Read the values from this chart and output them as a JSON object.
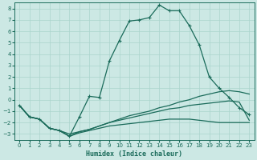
{
  "xlabel": "Humidex (Indice chaleur)",
  "xlim": [
    -0.5,
    23.5
  ],
  "ylim": [
    -3.5,
    8.5
  ],
  "xticks": [
    0,
    1,
    2,
    3,
    4,
    5,
    6,
    7,
    8,
    9,
    10,
    11,
    12,
    13,
    14,
    15,
    16,
    17,
    18,
    19,
    20,
    21,
    22,
    23
  ],
  "yticks": [
    -3,
    -2,
    -1,
    0,
    1,
    2,
    3,
    4,
    5,
    6,
    7,
    8
  ],
  "bg_color": "#cce8e4",
  "line_color": "#1a6b5a",
  "grid_color": "#aad4cc",
  "lines": [
    {
      "x": [
        0,
        1,
        2,
        3,
        4,
        5,
        6,
        7,
        8,
        9,
        10,
        11,
        12,
        13,
        14,
        15,
        16,
        17,
        18,
        19,
        20,
        21,
        22,
        23
      ],
      "y": [
        -0.5,
        -1.5,
        -1.7,
        -2.5,
        -2.7,
        -3.2,
        -1.5,
        0.3,
        0.2,
        3.4,
        5.2,
        6.9,
        7.0,
        7.2,
        8.3,
        7.8,
        7.8,
        6.5,
        4.8,
        2.0,
        1.0,
        0.2,
        -0.7,
        -1.3
      ],
      "marker": "+"
    },
    {
      "x": [
        0,
        1,
        2,
        3,
        4,
        5,
        6,
        7,
        8,
        9,
        10,
        11,
        12,
        13,
        14,
        15,
        16,
        17,
        18,
        19,
        20,
        21,
        22,
        23
      ],
      "y": [
        -0.5,
        -1.5,
        -1.7,
        -2.5,
        -2.7,
        -3.2,
        -2.8,
        -2.6,
        -2.3,
        -2.0,
        -1.7,
        -1.4,
        -1.2,
        -1.0,
        -0.7,
        -0.5,
        -0.2,
        0.0,
        0.3,
        0.5,
        0.7,
        0.8,
        0.7,
        0.5
      ],
      "marker": null
    },
    {
      "x": [
        0,
        1,
        2,
        3,
        4,
        5,
        6,
        7,
        8,
        9,
        10,
        11,
        12,
        13,
        14,
        15,
        16,
        17,
        18,
        19,
        20,
        21,
        22,
        23
      ],
      "y": [
        -0.5,
        -1.5,
        -1.7,
        -2.5,
        -2.7,
        -3.0,
        -2.8,
        -2.6,
        -2.3,
        -2.0,
        -1.8,
        -1.6,
        -1.4,
        -1.2,
        -1.0,
        -0.8,
        -0.7,
        -0.5,
        -0.4,
        -0.3,
        -0.2,
        -0.1,
        -0.2,
        -1.8
      ],
      "marker": null
    },
    {
      "x": [
        0,
        1,
        2,
        3,
        4,
        5,
        6,
        7,
        8,
        9,
        10,
        11,
        12,
        13,
        14,
        15,
        16,
        17,
        18,
        19,
        20,
        21,
        22,
        23
      ],
      "y": [
        -0.5,
        -1.5,
        -1.7,
        -2.5,
        -2.7,
        -3.2,
        -2.9,
        -2.7,
        -2.5,
        -2.3,
        -2.2,
        -2.1,
        -2.0,
        -1.9,
        -1.8,
        -1.7,
        -1.7,
        -1.7,
        -1.8,
        -1.9,
        -2.0,
        -2.0,
        -2.0,
        -2.0
      ],
      "marker": null
    }
  ]
}
